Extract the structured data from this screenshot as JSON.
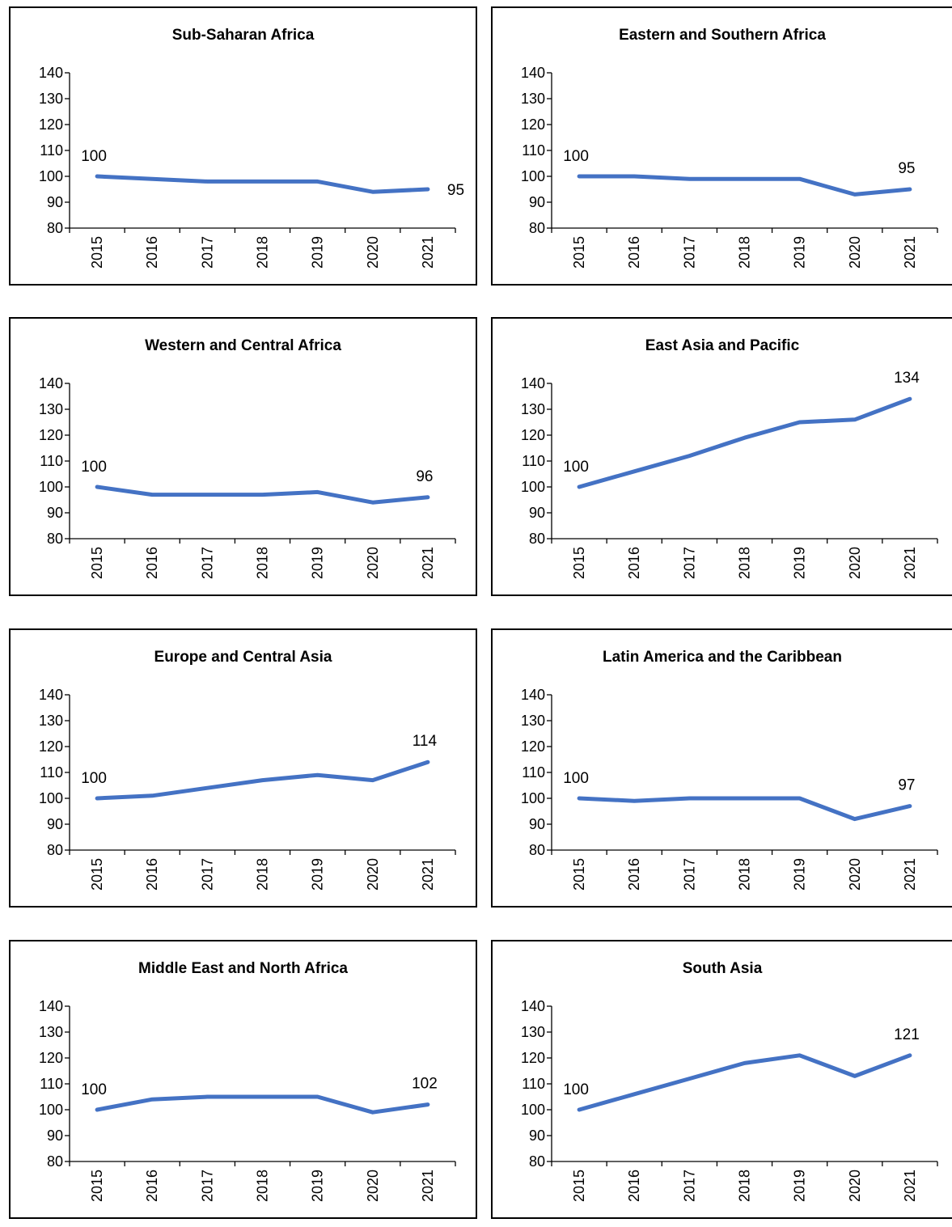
{
  "colors": {
    "series_line": "#4472C4",
    "frame": "#000000",
    "text": "#000000"
  },
  "chart_data": [
    {
      "type": "line",
      "title": "Sub-Saharan Africa",
      "categories": [
        "2015",
        "2016",
        "2017",
        "2018",
        "2019",
        "2020",
        "2021"
      ],
      "values": [
        100,
        99,
        98,
        98,
        98,
        94,
        95
      ],
      "ylim": [
        80,
        140
      ],
      "yticks": [
        80,
        90,
        100,
        110,
        120,
        130,
        140
      ],
      "data_labels": [
        {
          "index": 0,
          "text": "100"
        },
        {
          "index": 6,
          "text": "95"
        }
      ],
      "grid": false,
      "legend": "none"
    },
    {
      "type": "line",
      "title": "Eastern and Southern Africa",
      "categories": [
        "2015",
        "2016",
        "2017",
        "2018",
        "2019",
        "2020",
        "2021"
      ],
      "values": [
        100,
        100,
        99,
        99,
        99,
        93,
        95
      ],
      "ylim": [
        80,
        140
      ],
      "yticks": [
        80,
        90,
        100,
        110,
        120,
        130,
        140
      ],
      "data_labels": [
        {
          "index": 0,
          "text": "100"
        },
        {
          "index": 6,
          "text": "95"
        }
      ],
      "grid": false,
      "legend": "none"
    },
    {
      "type": "line",
      "title": "Western and Central Africa",
      "categories": [
        "2015",
        "2016",
        "2017",
        "2018",
        "2019",
        "2020",
        "2021"
      ],
      "values": [
        100,
        97,
        97,
        97,
        98,
        94,
        96
      ],
      "ylim": [
        80,
        140
      ],
      "yticks": [
        80,
        90,
        100,
        110,
        120,
        130,
        140
      ],
      "data_labels": [
        {
          "index": 0,
          "text": "100"
        },
        {
          "index": 6,
          "text": "96"
        }
      ],
      "grid": false,
      "legend": "none"
    },
    {
      "type": "line",
      "title": "East Asia and Pacific",
      "categories": [
        "2015",
        "2016",
        "2017",
        "2018",
        "2019",
        "2020",
        "2021"
      ],
      "values": [
        100,
        106,
        112,
        119,
        125,
        126,
        134
      ],
      "ylim": [
        80,
        140
      ],
      "yticks": [
        80,
        90,
        100,
        110,
        120,
        130,
        140
      ],
      "data_labels": [
        {
          "index": 0,
          "text": "100"
        },
        {
          "index": 6,
          "text": "134"
        }
      ],
      "grid": false,
      "legend": "none"
    },
    {
      "type": "line",
      "title": "Europe and Central Asia",
      "categories": [
        "2015",
        "2016",
        "2017",
        "2018",
        "2019",
        "2020",
        "2021"
      ],
      "values": [
        100,
        101,
        104,
        107,
        109,
        107,
        114
      ],
      "ylim": [
        80,
        140
      ],
      "yticks": [
        80,
        90,
        100,
        110,
        120,
        130,
        140
      ],
      "data_labels": [
        {
          "index": 0,
          "text": "100"
        },
        {
          "index": 6,
          "text": "114"
        }
      ],
      "grid": false,
      "legend": "none"
    },
    {
      "type": "line",
      "title": "Latin America and the Caribbean",
      "categories": [
        "2015",
        "2016",
        "2017",
        "2018",
        "2019",
        "2020",
        "2021"
      ],
      "values": [
        100,
        99,
        100,
        100,
        100,
        92,
        97
      ],
      "ylim": [
        80,
        140
      ],
      "yticks": [
        80,
        90,
        100,
        110,
        120,
        130,
        140
      ],
      "data_labels": [
        {
          "index": 0,
          "text": "100"
        },
        {
          "index": 6,
          "text": "97"
        }
      ],
      "grid": false,
      "legend": "none"
    },
    {
      "type": "line",
      "title": "Middle East and North Africa",
      "categories": [
        "2015",
        "2016",
        "2017",
        "2018",
        "2019",
        "2020",
        "2021"
      ],
      "values": [
        100,
        104,
        105,
        105,
        105,
        99,
        102
      ],
      "ylim": [
        80,
        140
      ],
      "yticks": [
        80,
        90,
        100,
        110,
        120,
        130,
        140
      ],
      "data_labels": [
        {
          "index": 0,
          "text": "100"
        },
        {
          "index": 6,
          "text": "102"
        }
      ],
      "grid": false,
      "legend": "none"
    },
    {
      "type": "line",
      "title": "South Asia",
      "categories": [
        "2015",
        "2016",
        "2017",
        "2018",
        "2019",
        "2020",
        "2021"
      ],
      "values": [
        100,
        106,
        112,
        118,
        121,
        113,
        121
      ],
      "ylim": [
        80,
        140
      ],
      "yticks": [
        80,
        90,
        100,
        110,
        120,
        130,
        140
      ],
      "data_labels": [
        {
          "index": 0,
          "text": "100"
        },
        {
          "index": 6,
          "text": "121"
        }
      ],
      "grid": false,
      "legend": "none"
    }
  ]
}
